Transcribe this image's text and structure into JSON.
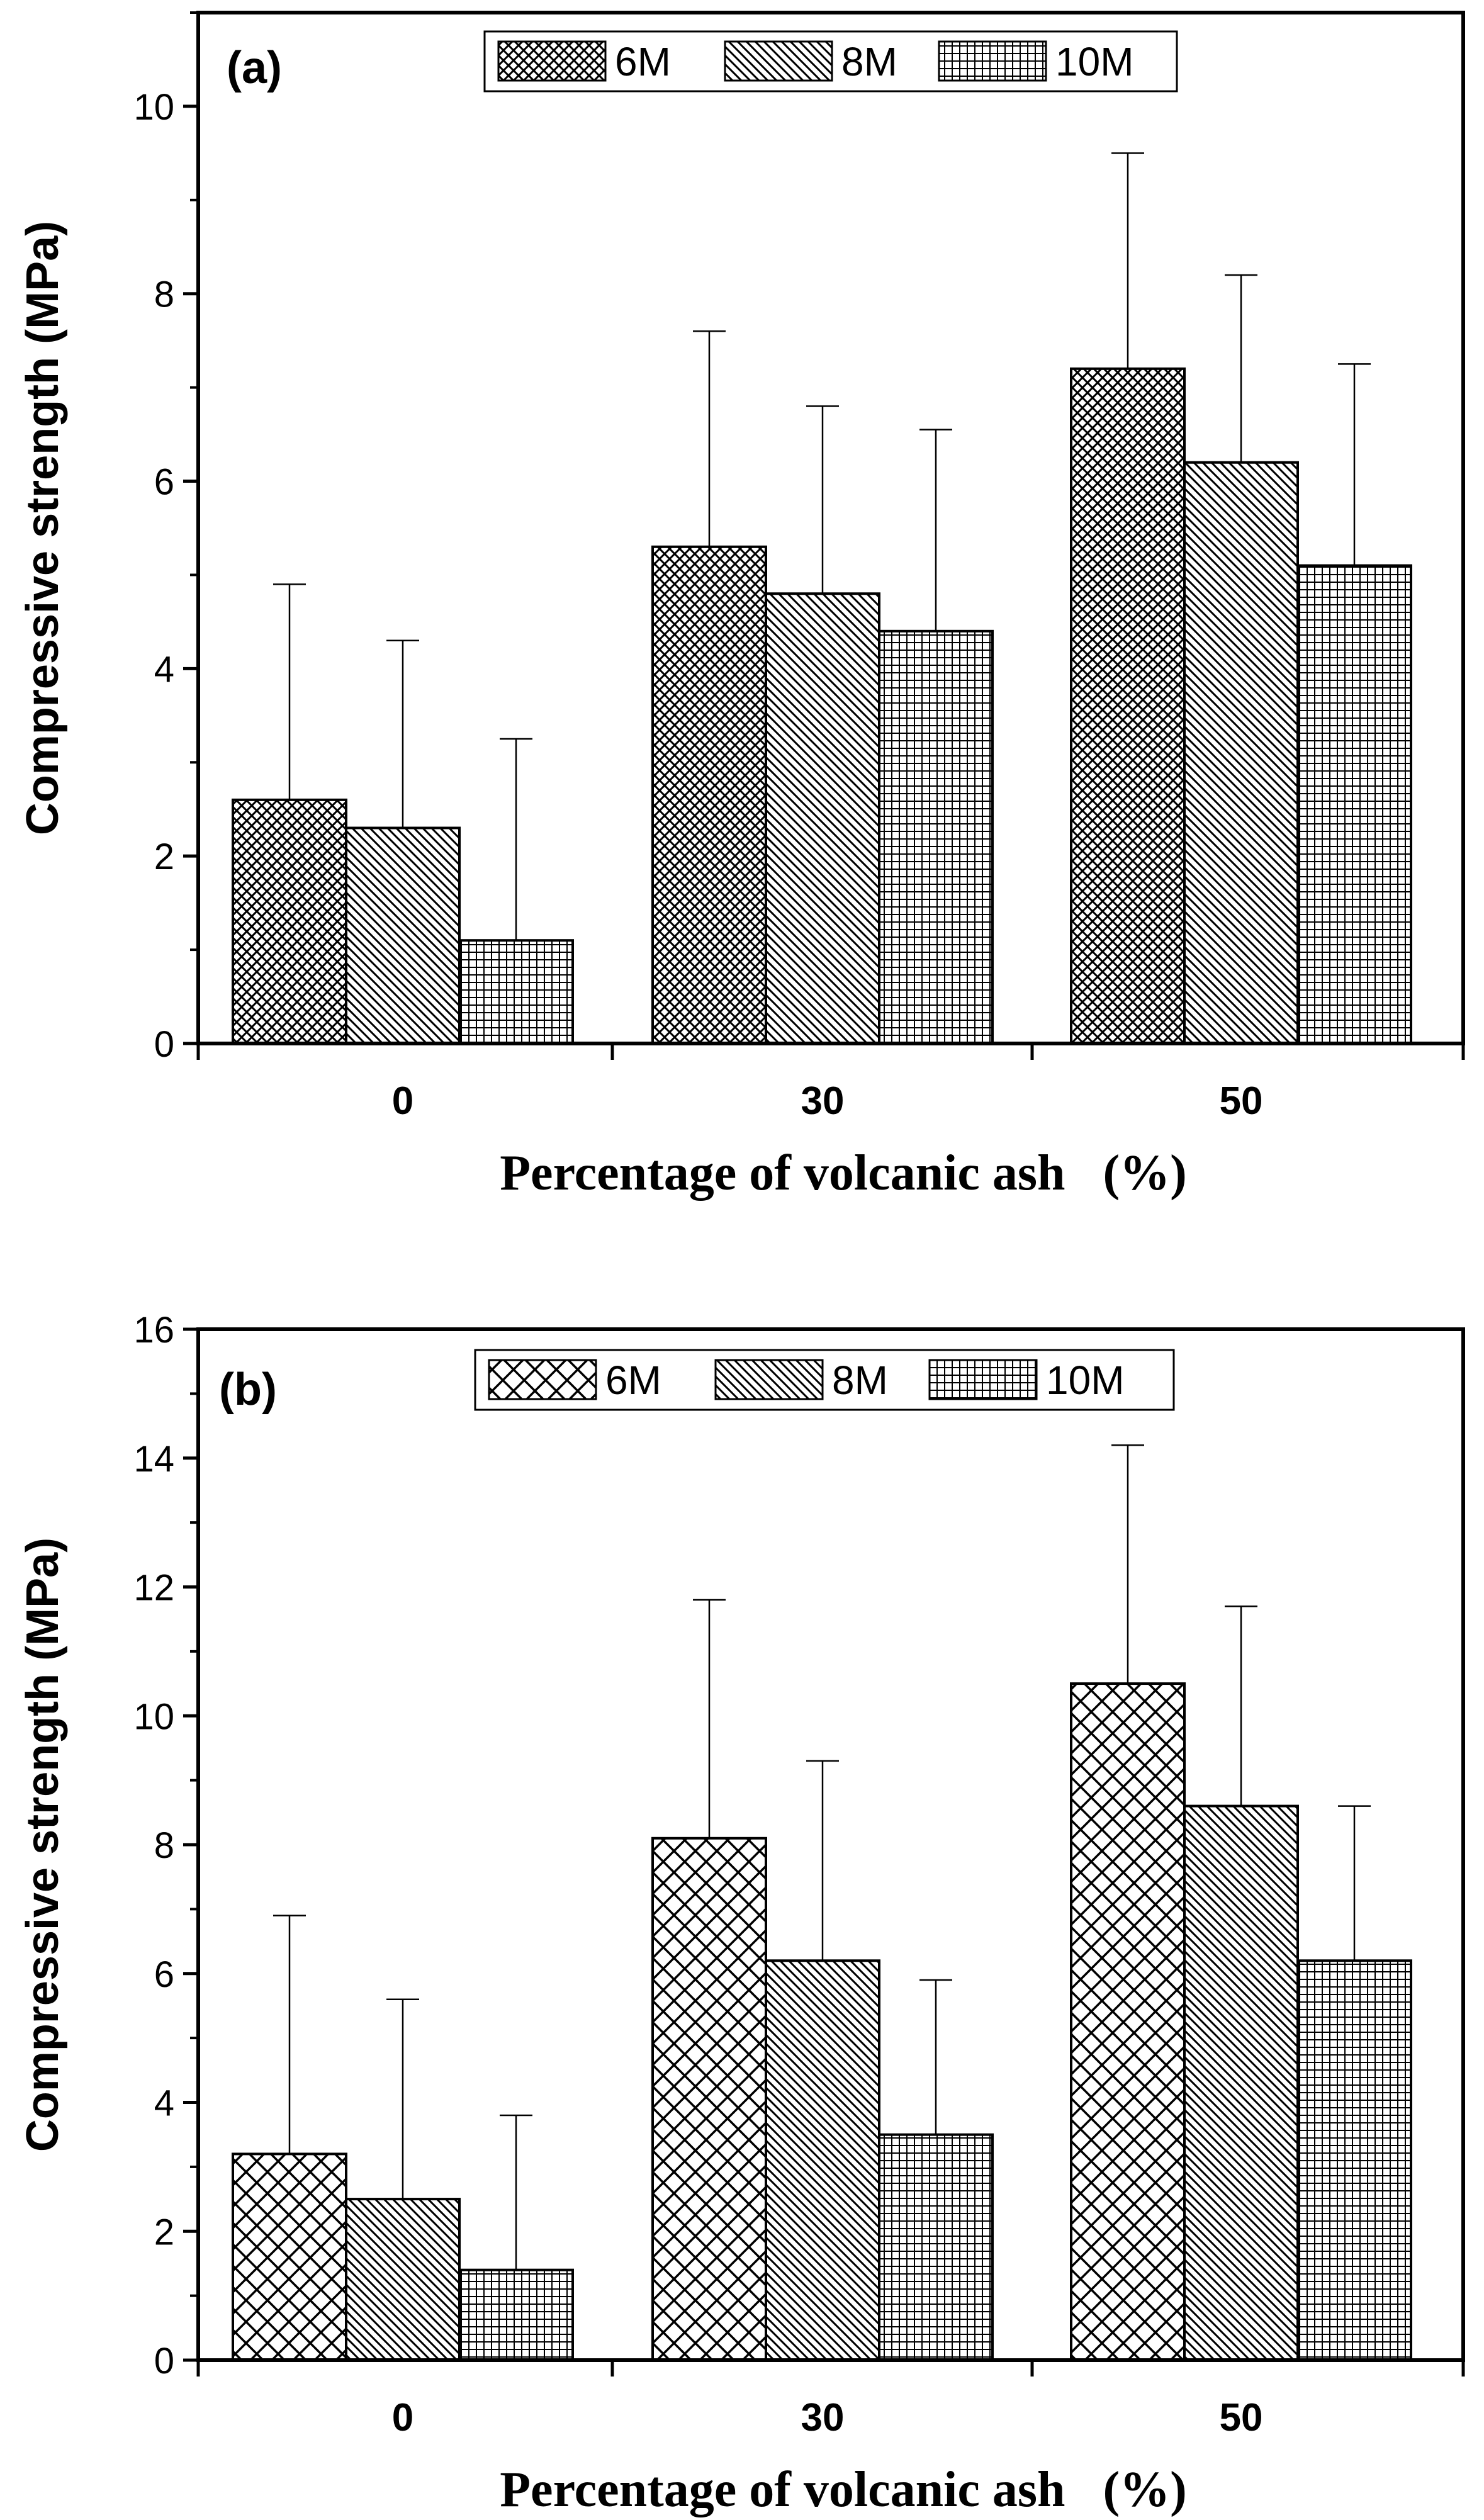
{
  "chart_data": [
    {
      "type": "bar",
      "panel_label": "(a)",
      "categories": [
        "0",
        "30",
        "50"
      ],
      "series": [
        {
          "name": "6M",
          "values": [
            2.6,
            5.3,
            7.2
          ],
          "errors": [
            2.3,
            2.3,
            2.3
          ],
          "pattern": "crosshatch-dense"
        },
        {
          "name": "8M",
          "values": [
            2.3,
            4.8,
            6.2
          ],
          "errors": [
            2.0,
            2.0,
            2.0
          ],
          "pattern": "diagonal"
        },
        {
          "name": "10M",
          "values": [
            1.1,
            4.4,
            5.1
          ],
          "errors": [
            2.15,
            2.15,
            2.15
          ],
          "pattern": "grid"
        }
      ],
      "xlabel": "Percentage of volcanic ash   (%)",
      "ylabel": "Compressive strength (MPa)",
      "ylim": [
        0,
        11
      ],
      "yticks": [
        "0",
        "2",
        "4",
        "6",
        "8",
        "10"
      ],
      "legend_position": "top-center"
    },
    {
      "type": "bar",
      "panel_label": "(b)",
      "categories": [
        "0",
        "30",
        "50"
      ],
      "series": [
        {
          "name": "6M",
          "values": [
            3.2,
            8.1,
            10.5
          ],
          "errors": [
            3.7,
            3.7,
            3.7
          ],
          "pattern": "crosshatch-open"
        },
        {
          "name": "8M",
          "values": [
            2.5,
            6.2,
            8.6
          ],
          "errors": [
            3.1,
            3.1,
            3.1
          ],
          "pattern": "diagonal"
        },
        {
          "name": "10M",
          "values": [
            1.4,
            3.5,
            6.2
          ],
          "errors": [
            2.4,
            2.4,
            2.4
          ],
          "pattern": "grid"
        }
      ],
      "xlabel": "Percentage of volcanic ash   (%)",
      "ylabel": "Compressive strength (MPa)",
      "ylim": [
        0,
        16
      ],
      "yticks": [
        "0",
        "2",
        "4",
        "6",
        "8",
        "10",
        "12",
        "14",
        "16"
      ],
      "legend_position": "top-center"
    }
  ]
}
